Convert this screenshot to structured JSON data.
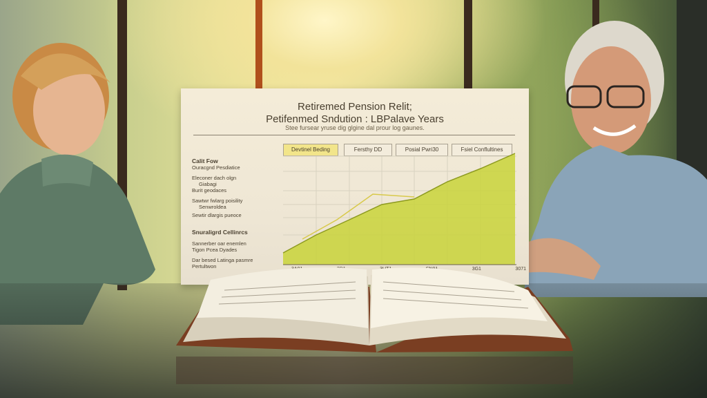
{
  "board": {
    "title_line1": "Retiremed Pension Relit;",
    "title_line2": "Petifenmed Sndution : LBPalave Years",
    "subtitle": "Stee fursear yruse dig glgine dal prour log gaunes.",
    "tabs": [
      "Devtinel Beding",
      "Fersthy DD",
      "Posial Pwri30",
      "Fsiel Conflultines"
    ],
    "side_heading1": "Calit Fow",
    "side_heading1b": "Ouracgnd Pesdiatice",
    "side_items1": [
      "Eleconer dach olgn",
      "Giabagi",
      "Burit geodaces",
      "Sawtwr fwlarg poisility",
      "Senwroldea",
      "Sewtir dlargis pueoce"
    ],
    "side_heading2": "Snuraligrd Cellinrcs",
    "side_items2": [
      "Sannerber oar enemlen",
      "Tigon Pcea Dyades",
      "Dar besed Latinga pasmre",
      "Pertultwon"
    ],
    "x_labels": [
      "3A01",
      "3D1",
      "3UT1",
      "SN01",
      "3G1",
      "3071"
    ]
  },
  "colors": {
    "area_fill": "#c9d43a",
    "line": "#d8c94a",
    "active_tab": "#f2e58a"
  }
}
